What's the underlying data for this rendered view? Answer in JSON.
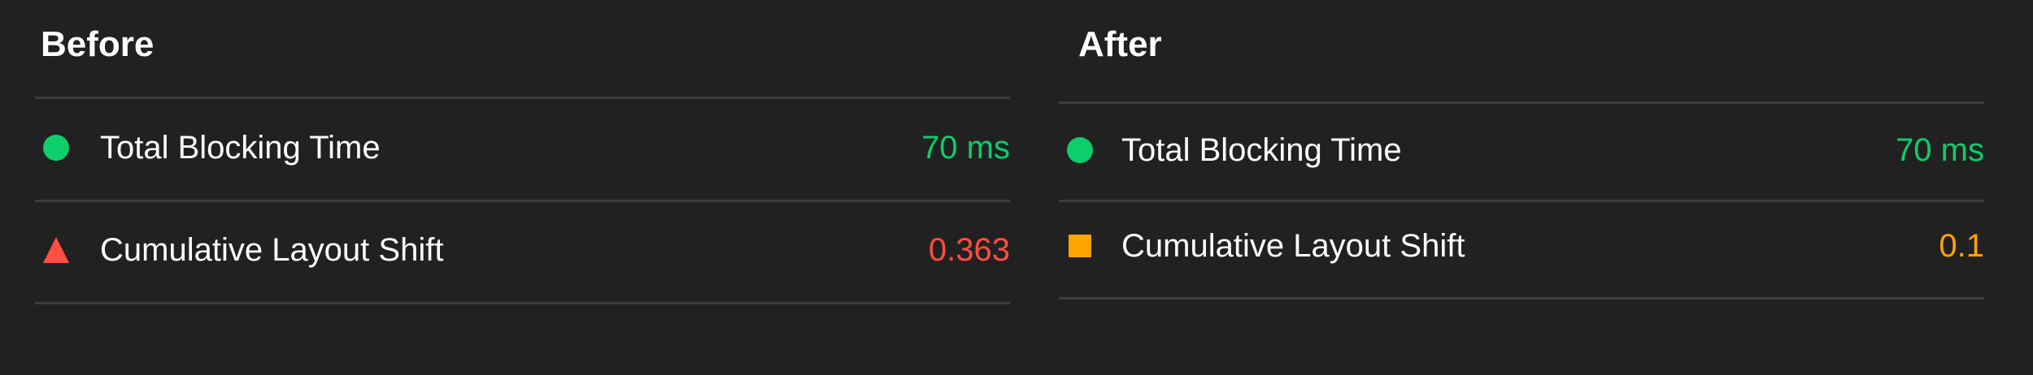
{
  "colors": {
    "pass": "#0cce6b",
    "fail": "#ff4e42",
    "average": "#ffa400",
    "background": "#212121"
  },
  "before": {
    "title": "Before",
    "metrics": [
      {
        "label": "Total Blocking Time",
        "value": "70 ms",
        "status": "pass",
        "icon": "circle-icon"
      },
      {
        "label": "Cumulative Layout Shift",
        "value": "0.363",
        "status": "fail",
        "icon": "triangle-icon"
      }
    ]
  },
  "after": {
    "title": "After",
    "metrics": [
      {
        "label": "Total Blocking Time",
        "value": "70 ms",
        "status": "pass",
        "icon": "circle-icon"
      },
      {
        "label": "Cumulative Layout Shift",
        "value": "0.1",
        "status": "average",
        "icon": "square-icon"
      }
    ]
  }
}
